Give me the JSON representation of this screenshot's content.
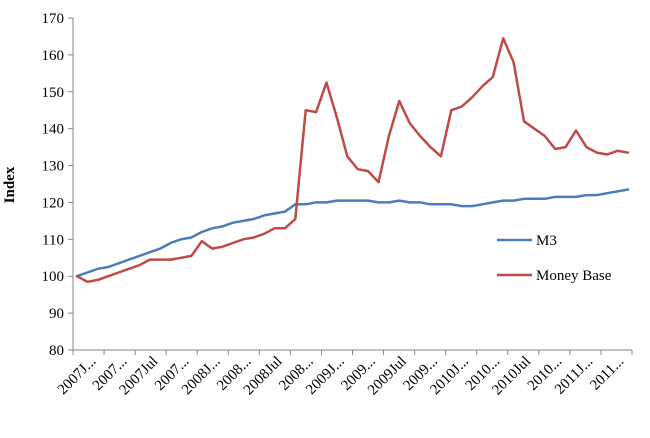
{
  "chart_data": {
    "type": "line",
    "title": "",
    "xlabel": "",
    "ylabel": "Index",
    "ylim": [
      80,
      170
    ],
    "yticks": [
      80,
      90,
      100,
      110,
      120,
      130,
      140,
      150,
      160,
      170
    ],
    "grid": "none",
    "legend_position": "right",
    "x_tick_labels": [
      "2007J...",
      "2007...",
      "2007Jul",
      "2007...",
      "2008J...",
      "2008...",
      "2008Jul",
      "2008...",
      "2009J...",
      "2009...",
      "2009Jul",
      "2009...",
      "2010J...",
      "2010...",
      "2010Jul",
      "2010...",
      "2011J...",
      "2011..."
    ],
    "series": [
      {
        "name": "M3",
        "color": "#4a7ebb",
        "values": [
          100,
          101,
          102,
          102.5,
          103.5,
          104.5,
          105.5,
          106.5,
          107.5,
          109,
          110,
          110.5,
          112,
          113,
          113.5,
          114.5,
          115,
          115.5,
          116.5,
          117,
          117.5,
          119.5,
          119.5,
          120,
          120,
          120.5,
          120.5,
          120.5,
          120.5,
          120,
          120,
          120.5,
          120,
          120,
          119.5,
          119.5,
          119.5,
          119,
          119,
          119.5,
          120,
          120.5,
          120.5,
          121,
          121,
          121,
          121.5,
          121.5,
          121.5,
          122,
          122,
          122.5,
          123,
          123.5
        ]
      },
      {
        "name": "Money Base",
        "color": "#be4b48",
        "values": [
          100,
          98.5,
          99,
          100,
          101,
          102,
          103,
          104.5,
          104.5,
          104.5,
          105,
          105.5,
          109.5,
          107.5,
          108,
          109,
          110,
          110.5,
          111.5,
          113,
          113,
          115.5,
          145,
          144.5,
          152.5,
          143,
          132.5,
          129,
          128.5,
          125.5,
          138,
          147.5,
          141.5,
          138,
          135,
          132.5,
          145,
          146,
          148.5,
          151.5,
          154,
          164.5,
          158,
          142,
          140,
          138,
          134.5,
          135,
          139.5,
          135,
          133.5,
          133,
          134,
          133.5
        ]
      }
    ]
  }
}
